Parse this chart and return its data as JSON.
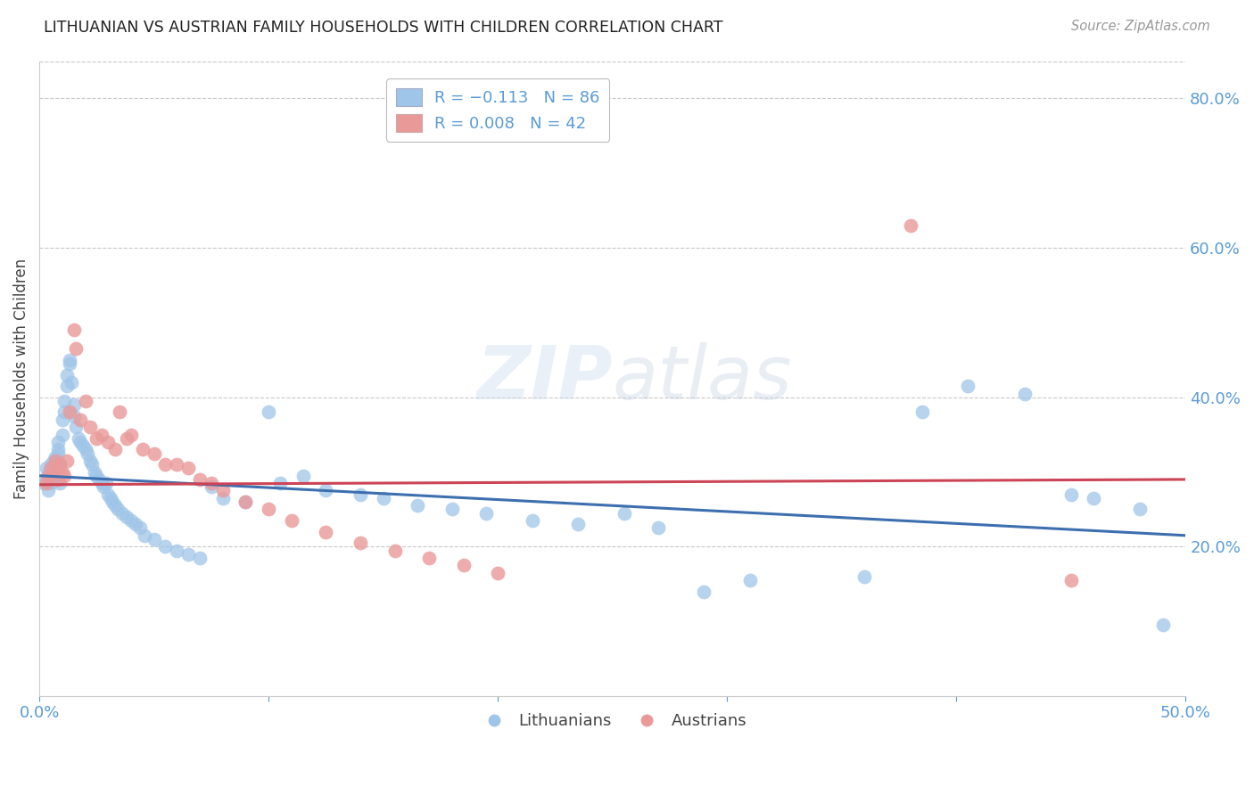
{
  "title": "LITHUANIAN VS AUSTRIAN FAMILY HOUSEHOLDS WITH CHILDREN CORRELATION CHART",
  "source": "Source: ZipAtlas.com",
  "ylabel": "Family Households with Children",
  "xlim": [
    0.0,
    0.5
  ],
  "ylim": [
    0.0,
    0.85
  ],
  "x_ticks": [
    0.0,
    0.1,
    0.2,
    0.3,
    0.4,
    0.5
  ],
  "x_tick_labels": [
    "0.0%",
    "",
    "",
    "",
    "",
    "50.0%"
  ],
  "y_ticks_right": [
    0.2,
    0.4,
    0.6,
    0.8
  ],
  "y_tick_labels_right": [
    "20.0%",
    "40.0%",
    "60.0%",
    "80.0%"
  ],
  "legend_line1": "R = −0.113   N = 86",
  "legend_line2": "R = 0.008   N = 42",
  "watermark": "ZIPatlas",
  "blue_color": "#9fc5e8",
  "pink_color": "#ea9999",
  "blue_line_color": "#3d6faf",
  "pink_line_color": "#cc4455",
  "title_color": "#222222",
  "axis_label_color": "#444444",
  "tick_color": "#5b9bd5",
  "grid_color": "#c8c8c8",
  "background_color": "#ffffff",
  "blue_trend_x": [
    0.0,
    0.5
  ],
  "blue_trend_y": [
    0.295,
    0.215
  ],
  "pink_trend_x": [
    0.0,
    0.5
  ],
  "pink_trend_y": [
    0.283,
    0.29
  ],
  "lith_x": [
    0.002,
    0.003,
    0.003,
    0.004,
    0.004,
    0.005,
    0.005,
    0.005,
    0.006,
    0.006,
    0.006,
    0.007,
    0.007,
    0.007,
    0.008,
    0.008,
    0.008,
    0.009,
    0.009,
    0.01,
    0.01,
    0.011,
    0.011,
    0.012,
    0.012,
    0.013,
    0.013,
    0.014,
    0.015,
    0.015,
    0.016,
    0.017,
    0.018,
    0.019,
    0.02,
    0.021,
    0.022,
    0.023,
    0.024,
    0.025,
    0.026,
    0.027,
    0.028,
    0.029,
    0.03,
    0.031,
    0.032,
    0.033,
    0.034,
    0.036,
    0.038,
    0.04,
    0.042,
    0.044,
    0.046,
    0.05,
    0.055,
    0.06,
    0.065,
    0.07,
    0.075,
    0.08,
    0.09,
    0.1,
    0.105,
    0.115,
    0.125,
    0.14,
    0.15,
    0.165,
    0.18,
    0.195,
    0.215,
    0.235,
    0.255,
    0.27,
    0.29,
    0.31,
    0.36,
    0.385,
    0.405,
    0.43,
    0.45,
    0.46,
    0.48,
    0.49
  ],
  "lith_y": [
    0.285,
    0.305,
    0.29,
    0.3,
    0.275,
    0.31,
    0.295,
    0.285,
    0.315,
    0.295,
    0.305,
    0.32,
    0.3,
    0.295,
    0.34,
    0.325,
    0.33,
    0.285,
    0.31,
    0.35,
    0.37,
    0.38,
    0.395,
    0.415,
    0.43,
    0.445,
    0.45,
    0.42,
    0.39,
    0.375,
    0.36,
    0.345,
    0.34,
    0.335,
    0.33,
    0.325,
    0.315,
    0.31,
    0.3,
    0.295,
    0.29,
    0.285,
    0.28,
    0.285,
    0.27,
    0.265,
    0.26,
    0.255,
    0.25,
    0.245,
    0.24,
    0.235,
    0.23,
    0.225,
    0.215,
    0.21,
    0.2,
    0.195,
    0.19,
    0.185,
    0.28,
    0.265,
    0.26,
    0.38,
    0.285,
    0.295,
    0.275,
    0.27,
    0.265,
    0.255,
    0.25,
    0.245,
    0.235,
    0.23,
    0.245,
    0.225,
    0.14,
    0.155,
    0.16,
    0.38,
    0.415,
    0.405,
    0.27,
    0.265,
    0.25,
    0.095
  ],
  "aust_x": [
    0.003,
    0.004,
    0.005,
    0.006,
    0.007,
    0.008,
    0.009,
    0.01,
    0.011,
    0.012,
    0.013,
    0.015,
    0.016,
    0.018,
    0.02,
    0.022,
    0.025,
    0.027,
    0.03,
    0.033,
    0.035,
    0.038,
    0.04,
    0.045,
    0.05,
    0.055,
    0.06,
    0.065,
    0.07,
    0.075,
    0.08,
    0.09,
    0.1,
    0.11,
    0.125,
    0.14,
    0.155,
    0.17,
    0.185,
    0.2,
    0.38,
    0.45
  ],
  "aust_y": [
    0.285,
    0.295,
    0.305,
    0.3,
    0.315,
    0.29,
    0.31,
    0.3,
    0.295,
    0.315,
    0.38,
    0.49,
    0.465,
    0.37,
    0.395,
    0.36,
    0.345,
    0.35,
    0.34,
    0.33,
    0.38,
    0.345,
    0.35,
    0.33,
    0.325,
    0.31,
    0.31,
    0.305,
    0.29,
    0.285,
    0.275,
    0.26,
    0.25,
    0.235,
    0.22,
    0.205,
    0.195,
    0.185,
    0.175,
    0.165,
    0.63,
    0.155
  ]
}
